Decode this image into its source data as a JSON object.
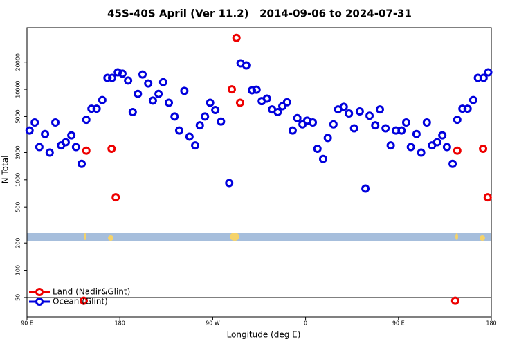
{
  "chart_data": {
    "type": "scatter",
    "title": "45S-40S April (Ver 11.2)   2014-09-06 to 2024-07-31",
    "x_label": "Longitude (deg E)",
    "y_label": "N Total",
    "xlim": [
      90,
      540
    ],
    "xticks": [
      {
        "value": 90,
        "label": "90 E"
      },
      180,
      {
        "value": 270,
        "label": "90 W"
      },
      {
        "value": 360,
        "label": "0"
      },
      {
        "value": 450,
        "label": "90 E"
      },
      {
        "value": 540,
        "label": "180"
      }
    ],
    "ylim": [
      30.5,
      48000
    ],
    "log_y": true,
    "yticks": [
      50,
      100,
      200,
      500,
      1000,
      2000,
      5000,
      10000,
      20000
    ],
    "legend": "lower left",
    "series": [
      {
        "name": "Land (Nadir&Glint)",
        "color": "#ee0000",
        "x": [
          145,
          147.5,
          172,
          176,
          288.5,
          293,
          296.5,
          505,
          507,
          532,
          536.5
        ],
        "values": [
          46,
          2100,
          2200,
          640,
          10000,
          37000,
          7100,
          46,
          2100,
          2200,
          640
        ]
      },
      {
        "name": "Ocean (Glint)",
        "color": "#0000dd",
        "x": [
          92.5,
          97.5,
          102,
          107.5,
          112,
          117.5,
          123,
          127.5,
          133,
          137.5,
          143,
          147.5,
          152.5,
          157.5,
          163,
          168,
          172.5,
          178,
          182.5,
          188,
          192.5,
          197.5,
          202,
          207.5,
          212,
          217.5,
          222,
          227.5,
          233,
          237.5,
          242.5,
          247.5,
          253,
          257.5,
          262.5,
          267.5,
          272.5,
          278,
          286,
          297,
          302.5,
          308,
          312.5,
          317.5,
          322.5,
          327.5,
          333,
          337.5,
          342,
          347.5,
          352,
          357,
          361.5,
          367,
          371.5,
          377,
          381.5,
          387,
          391.5,
          397,
          402,
          407,
          412.5,
          418,
          422,
          427.5,
          432,
          437.5,
          442.5,
          447.5,
          453,
          457.5,
          462,
          467.5,
          472,
          477.5,
          482.5,
          487.5,
          492.5,
          497,
          502.5,
          507,
          512,
          517,
          522.5,
          527,
          532.5,
          537
        ],
        "values": [
          3500,
          4300,
          2300,
          3200,
          2000,
          4300,
          2400,
          2600,
          3100,
          2300,
          1500,
          4600,
          6100,
          6100,
          7600,
          13400,
          13400,
          15400,
          14900,
          12500,
          5600,
          8900,
          14600,
          11600,
          7500,
          8900,
          12000,
          7100,
          5000,
          3500,
          9600,
          3000,
          2400,
          4000,
          5000,
          7100,
          5900,
          4400,
          920,
          19400,
          18400,
          9750,
          9900,
          7400,
          7900,
          6000,
          5600,
          6500,
          7200,
          3500,
          4800,
          4100,
          4500,
          4300,
          2200,
          1700,
          2900,
          4100,
          6000,
          6400,
          5400,
          3700,
          5700,
          800,
          5100,
          4000,
          6000,
          3700,
          2400,
          3500,
          3500,
          4300,
          2300,
          3200,
          2000,
          4300,
          2400,
          2600,
          3100,
          2300,
          1500,
          4600,
          6100,
          6100,
          7600,
          13400,
          13400,
          15400
        ]
      }
    ]
  }
}
